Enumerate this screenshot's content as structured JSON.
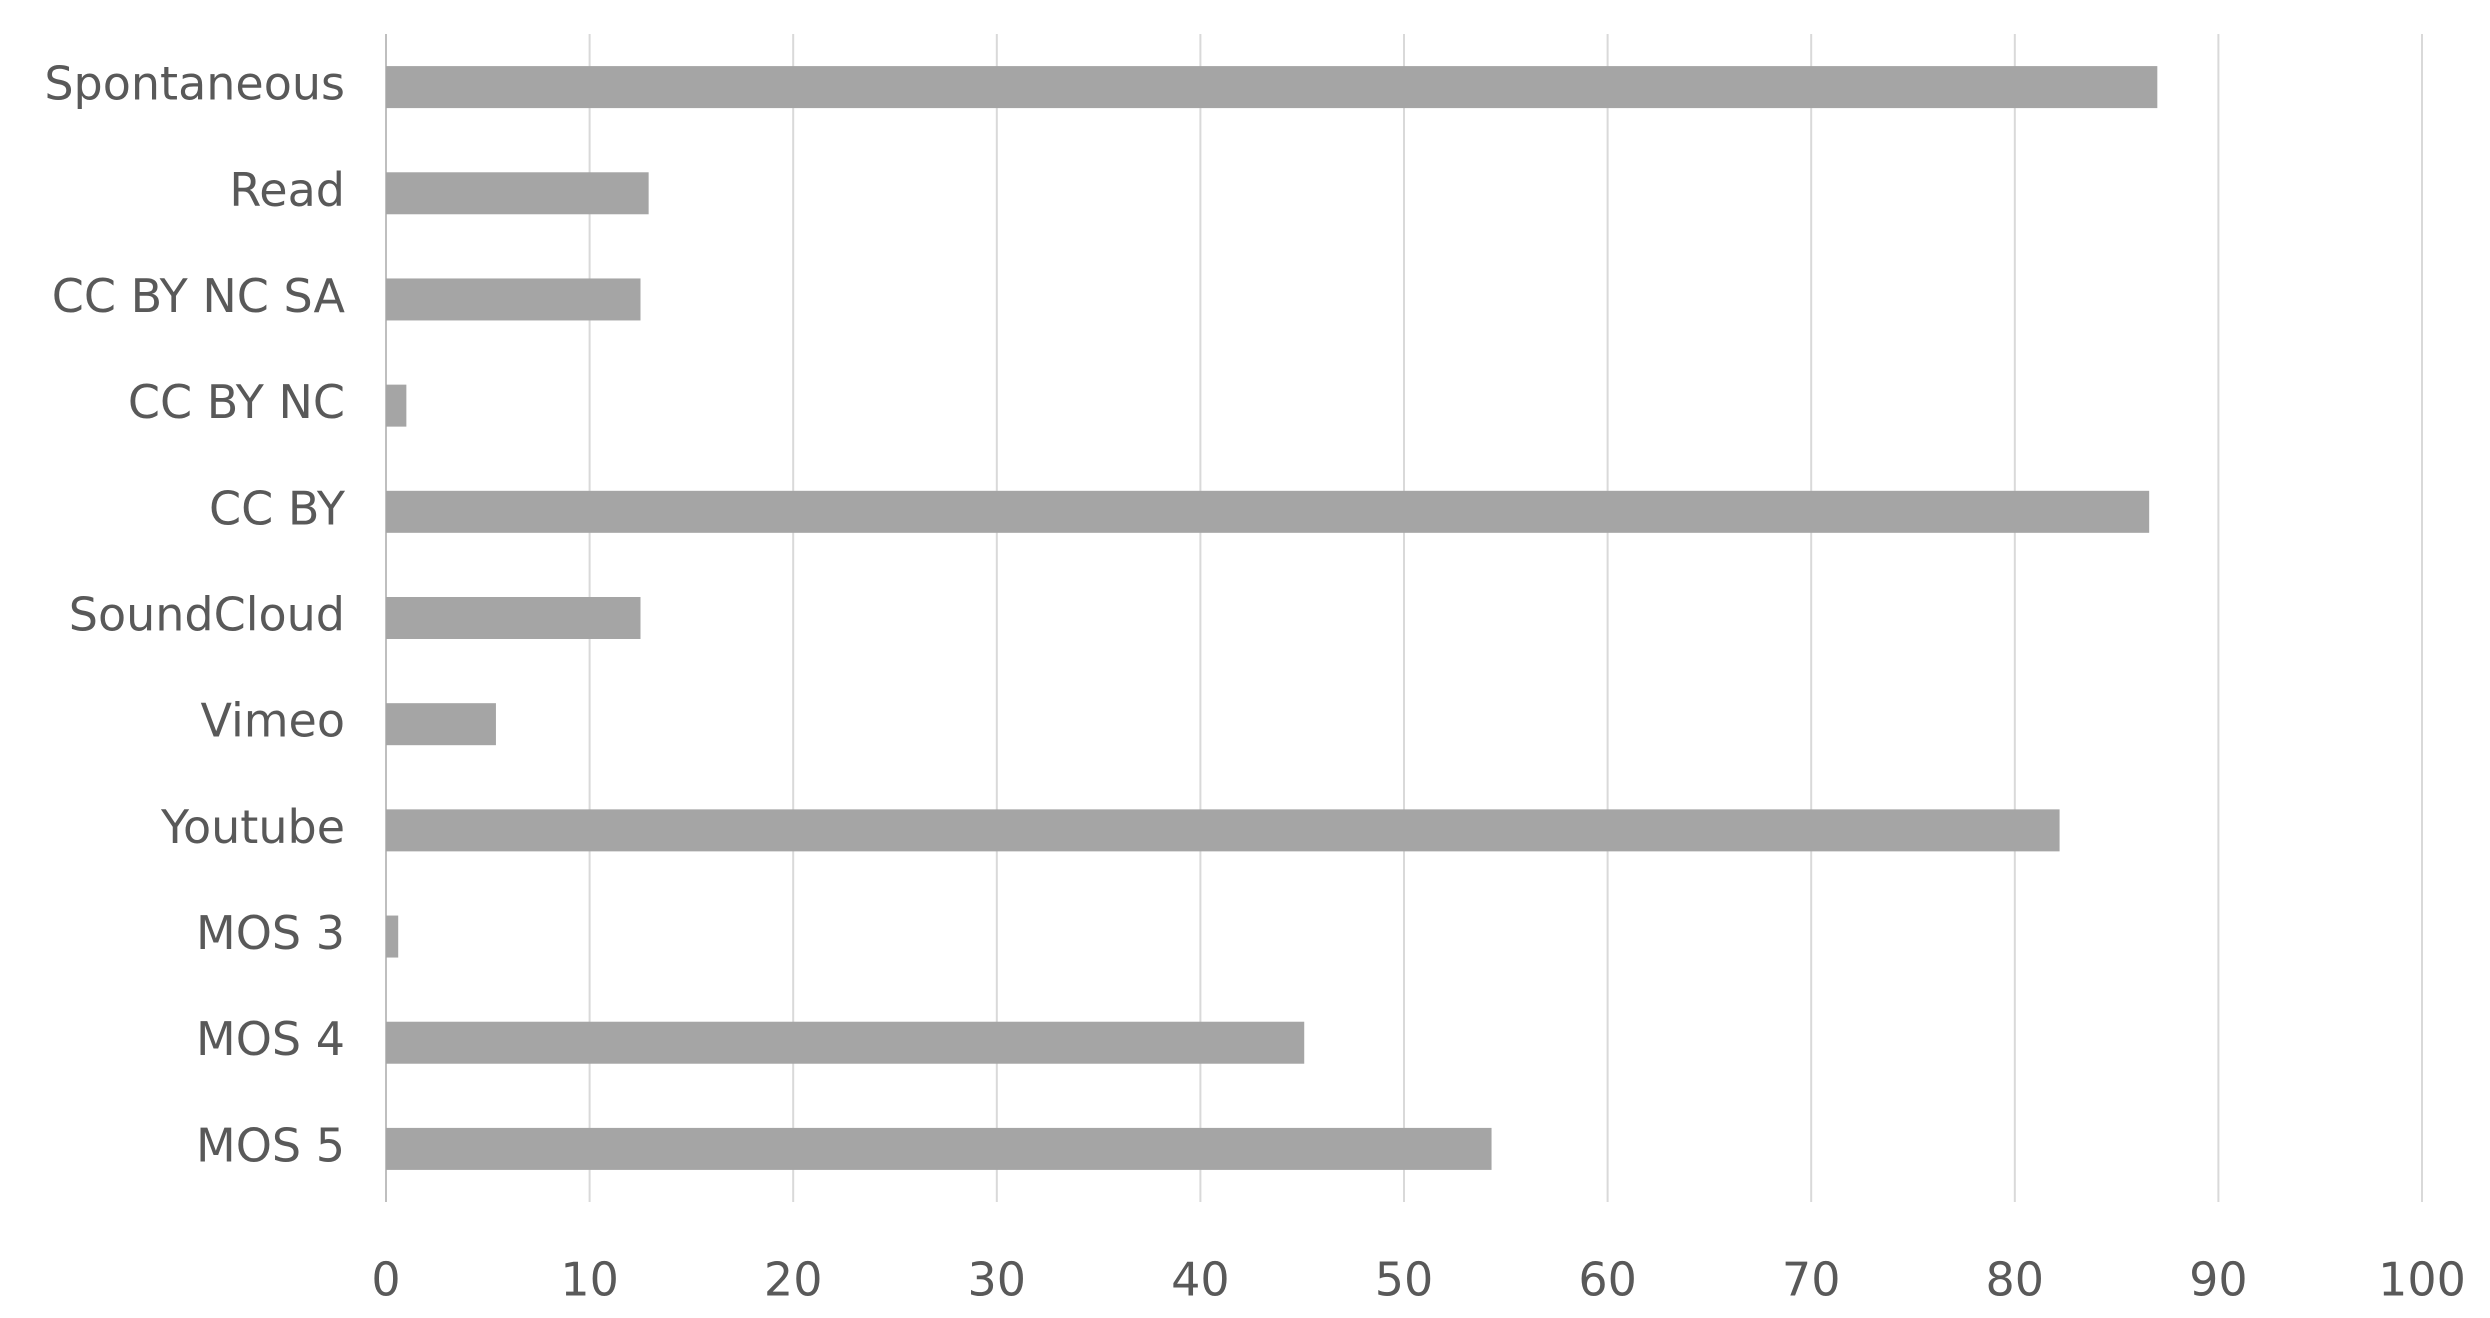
{
  "chart_data": {
    "type": "barh",
    "categories": [
      "Spontaneous",
      "Read",
      "CC BY NC SA",
      "CC BY NC",
      "CC BY",
      "SoundCloud",
      "Vimeo",
      "Youtube",
      "MOS 3",
      "MOS 4",
      "MOS 5"
    ],
    "values": [
      87.0,
      12.9,
      12.5,
      1.0,
      86.6,
      12.5,
      5.4,
      82.2,
      0.6,
      45.1,
      54.3
    ],
    "color": "#a5a5a5",
    "xlim": [
      0,
      100
    ],
    "xticks": [
      0,
      10,
      20,
      30,
      40,
      50,
      60,
      70,
      80,
      90,
      100
    ],
    "grid": true
  }
}
